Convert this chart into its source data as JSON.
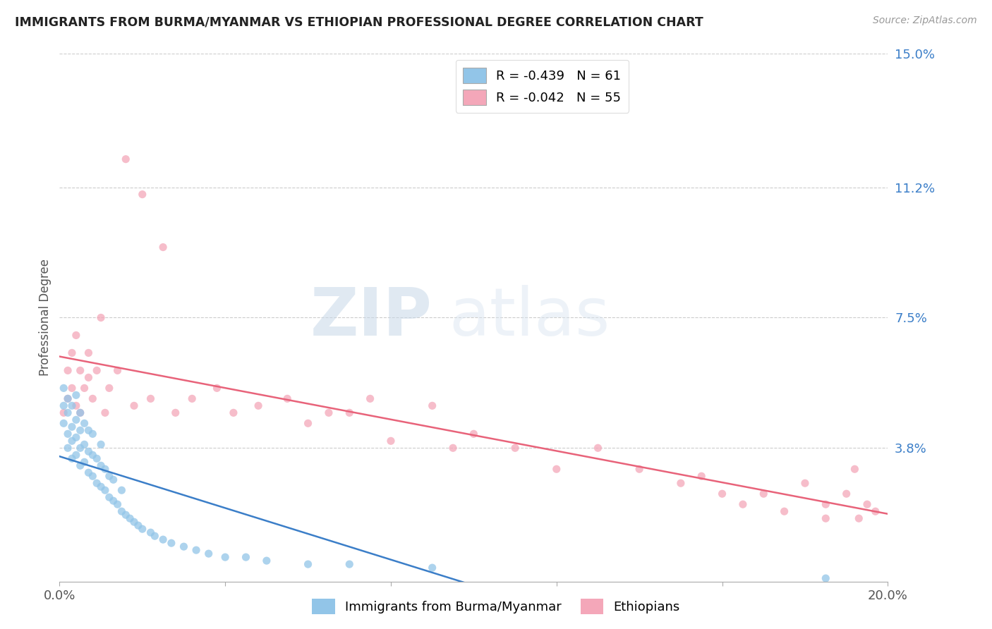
{
  "title": "IMMIGRANTS FROM BURMA/MYANMAR VS ETHIOPIAN PROFESSIONAL DEGREE CORRELATION CHART",
  "source": "Source: ZipAtlas.com",
  "ylabel": "Professional Degree",
  "xlim": [
    0.0,
    0.2
  ],
  "ylim": [
    0.0,
    0.15
  ],
  "ytick_vals": [
    0.038,
    0.075,
    0.112,
    0.15
  ],
  "ytick_labels": [
    "3.8%",
    "7.5%",
    "11.2%",
    "15.0%"
  ],
  "r_burma": -0.439,
  "n_burma": 61,
  "r_ethiopian": -0.042,
  "n_ethiopian": 55,
  "color_burma": "#92C5E8",
  "color_ethiopian": "#F4A7B9",
  "line_color_burma": "#3B7EC8",
  "line_color_ethiopian": "#E8637A",
  "legend_label_burma": "Immigrants from Burma/Myanmar",
  "legend_label_ethiopian": "Ethiopians",
  "watermark_zip": "ZIP",
  "watermark_atlas": "atlas",
  "background_color": "#FFFFFF",
  "scatter_alpha": 0.75,
  "scatter_size": 65,
  "burma_x": [
    0.001,
    0.001,
    0.001,
    0.002,
    0.002,
    0.002,
    0.002,
    0.003,
    0.003,
    0.003,
    0.003,
    0.004,
    0.004,
    0.004,
    0.004,
    0.005,
    0.005,
    0.005,
    0.005,
    0.006,
    0.006,
    0.006,
    0.007,
    0.007,
    0.007,
    0.008,
    0.008,
    0.008,
    0.009,
    0.009,
    0.01,
    0.01,
    0.01,
    0.011,
    0.011,
    0.012,
    0.012,
    0.013,
    0.013,
    0.014,
    0.015,
    0.015,
    0.016,
    0.017,
    0.018,
    0.019,
    0.02,
    0.022,
    0.023,
    0.025,
    0.027,
    0.03,
    0.033,
    0.036,
    0.04,
    0.045,
    0.05,
    0.06,
    0.07,
    0.09,
    0.185
  ],
  "burma_y": [
    0.045,
    0.05,
    0.055,
    0.038,
    0.042,
    0.048,
    0.052,
    0.035,
    0.04,
    0.044,
    0.05,
    0.036,
    0.041,
    0.046,
    0.053,
    0.033,
    0.038,
    0.043,
    0.048,
    0.034,
    0.039,
    0.045,
    0.031,
    0.037,
    0.043,
    0.03,
    0.036,
    0.042,
    0.028,
    0.035,
    0.027,
    0.033,
    0.039,
    0.026,
    0.032,
    0.024,
    0.03,
    0.023,
    0.029,
    0.022,
    0.02,
    0.026,
    0.019,
    0.018,
    0.017,
    0.016,
    0.015,
    0.014,
    0.013,
    0.012,
    0.011,
    0.01,
    0.009,
    0.008,
    0.007,
    0.007,
    0.006,
    0.005,
    0.005,
    0.004,
    0.001
  ],
  "ethiopian_x": [
    0.001,
    0.002,
    0.002,
    0.003,
    0.003,
    0.004,
    0.004,
    0.005,
    0.005,
    0.006,
    0.007,
    0.007,
    0.008,
    0.009,
    0.01,
    0.011,
    0.012,
    0.014,
    0.016,
    0.018,
    0.02,
    0.022,
    0.025,
    0.028,
    0.032,
    0.038,
    0.042,
    0.048,
    0.055,
    0.06,
    0.065,
    0.07,
    0.075,
    0.08,
    0.09,
    0.095,
    0.1,
    0.11,
    0.12,
    0.13,
    0.14,
    0.15,
    0.155,
    0.16,
    0.165,
    0.17,
    0.175,
    0.18,
    0.185,
    0.185,
    0.19,
    0.192,
    0.193,
    0.195,
    0.197
  ],
  "ethiopian_y": [
    0.048,
    0.052,
    0.06,
    0.055,
    0.065,
    0.05,
    0.07,
    0.048,
    0.06,
    0.055,
    0.058,
    0.065,
    0.052,
    0.06,
    0.075,
    0.048,
    0.055,
    0.06,
    0.12,
    0.05,
    0.11,
    0.052,
    0.095,
    0.048,
    0.052,
    0.055,
    0.048,
    0.05,
    0.052,
    0.045,
    0.048,
    0.048,
    0.052,
    0.04,
    0.05,
    0.038,
    0.042,
    0.038,
    0.032,
    0.038,
    0.032,
    0.028,
    0.03,
    0.025,
    0.022,
    0.025,
    0.02,
    0.028,
    0.018,
    0.022,
    0.025,
    0.032,
    0.018,
    0.022,
    0.02
  ]
}
